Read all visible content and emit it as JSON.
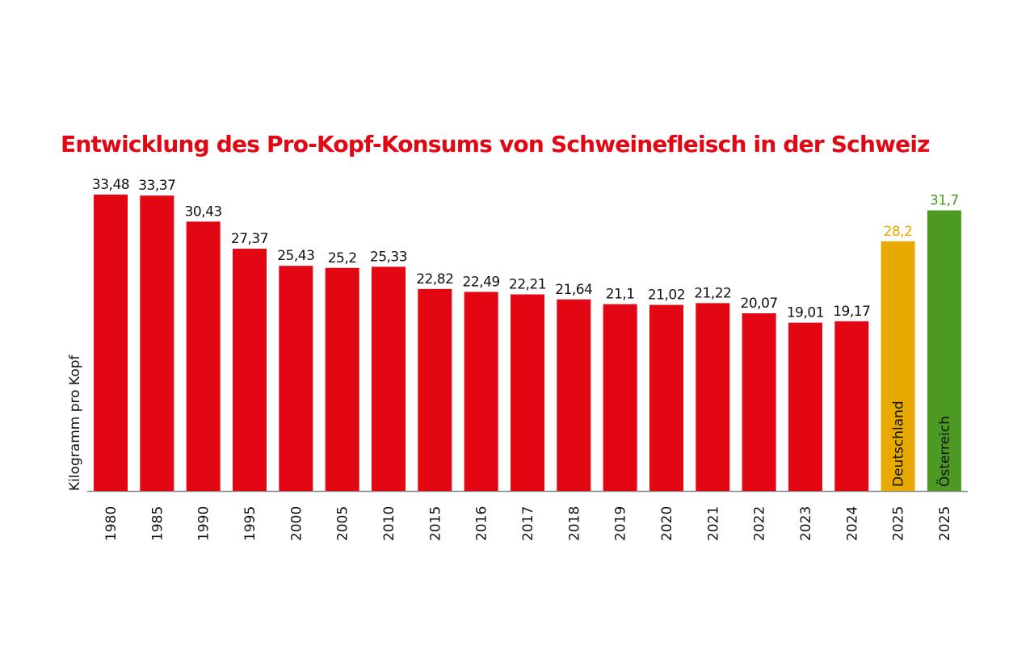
{
  "chart_data": {
    "type": "bar",
    "title": "Entwicklung des Pro-Kopf-Konsums von Schweinefleisch in der Schweiz",
    "ylabel": "Kilogramm pro Kopf",
    "xlabel": "",
    "ylim": [
      0,
      33.48
    ],
    "grid": false,
    "categories": [
      "1980",
      "1985",
      "1990",
      "1995",
      "2000",
      "2005",
      "2010",
      "2015",
      "2016",
      "2017",
      "2018",
      "2019",
      "2020",
      "2021",
      "2022",
      "2023",
      "2024",
      "2025",
      "2025"
    ],
    "values": [
      33.48,
      33.37,
      30.43,
      27.37,
      25.43,
      25.2,
      25.33,
      22.82,
      22.49,
      22.21,
      21.64,
      21.1,
      21.02,
      21.22,
      20.07,
      19.01,
      19.17,
      28.2,
      31.7
    ],
    "data_labels": [
      "33,48",
      "33,37",
      "30,43",
      "27,37",
      "25,43",
      "25,2",
      "25,33",
      "22,82",
      "22,49",
      "22,21",
      "21,64",
      "21,1",
      "21,02",
      "21,22",
      "20,07",
      "19,01",
      "19,17",
      "28,2",
      "31,7"
    ],
    "bar_labels": [
      "",
      "",
      "",
      "",
      "",
      "",
      "",
      "",
      "",
      "",
      "",
      "",
      "",
      "",
      "",
      "",
      "",
      "Deutschland",
      "Österreich"
    ],
    "colors": [
      "#e30613",
      "#e30613",
      "#e30613",
      "#e30613",
      "#e30613",
      "#e30613",
      "#e30613",
      "#e30613",
      "#e30613",
      "#e30613",
      "#e30613",
      "#e30613",
      "#e30613",
      "#e30613",
      "#e30613",
      "#e30613",
      "#e30613",
      "#e8a900",
      "#4c9a22"
    ]
  }
}
